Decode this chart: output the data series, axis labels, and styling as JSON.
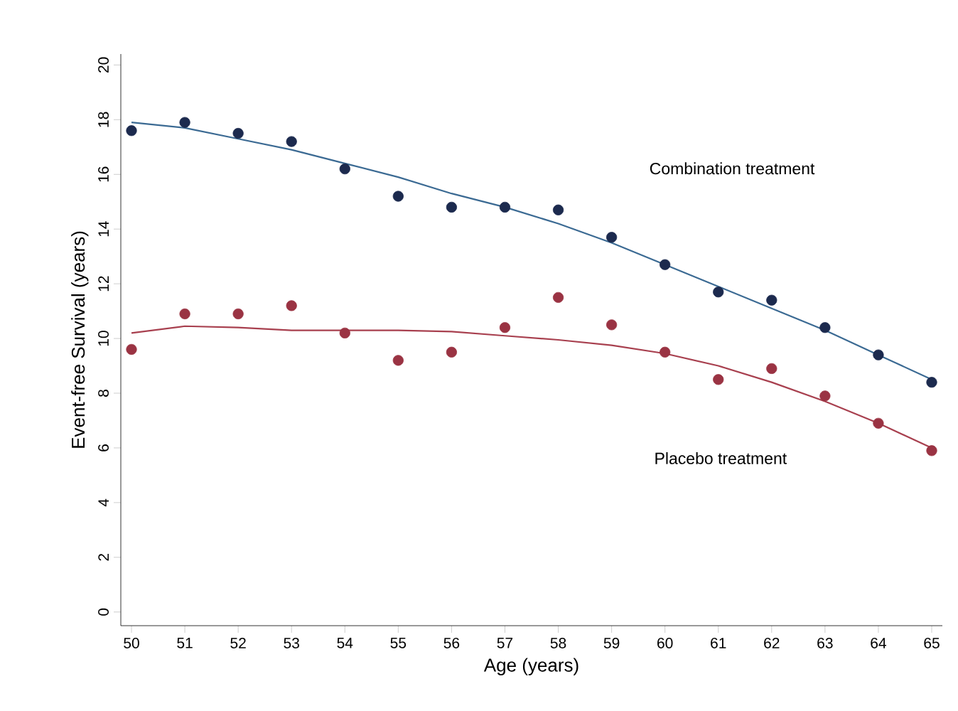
{
  "chart_data": {
    "type": "scatter",
    "xlabel": "Age (years)",
    "ylabel": "Event-free Survival (years)",
    "x": [
      50,
      51,
      52,
      53,
      54,
      55,
      56,
      57,
      58,
      59,
      60,
      61,
      62,
      63,
      64,
      65
    ],
    "xlim": [
      49.8,
      65.2
    ],
    "xticks": [
      50,
      51,
      52,
      53,
      54,
      55,
      56,
      57,
      58,
      59,
      60,
      61,
      62,
      63,
      64,
      65
    ],
    "ylim": [
      -0.5,
      20.4
    ],
    "yticks": [
      0,
      2,
      4,
      6,
      8,
      10,
      12,
      14,
      16,
      18,
      20
    ],
    "series": [
      {
        "marker": "circle",
        "color": "#1c2a4e",
        "values": [
          17.6,
          17.9,
          17.5,
          17.2,
          16.2,
          15.2,
          14.8,
          14.8,
          14.7,
          13.7,
          12.7,
          11.7,
          11.4,
          10.4,
          9.4,
          8.4
        ]
      },
      {
        "type": "line",
        "marker": "none",
        "color": "#3b6a93",
        "values": [
          17.9,
          17.7,
          17.3,
          16.9,
          16.4,
          15.9,
          15.3,
          14.8,
          14.2,
          13.5,
          12.7,
          11.9,
          11.1,
          10.3,
          9.4,
          8.5
        ]
      },
      {
        "marker": "circle",
        "color": "#9a3343",
        "values": [
          9.6,
          10.9,
          10.9,
          11.2,
          10.2,
          9.2,
          9.5,
          10.4,
          11.5,
          10.5,
          9.5,
          8.5,
          8.9,
          7.9,
          6.9,
          5.9
        ]
      },
      {
        "type": "line",
        "marker": "none",
        "color": "#a8404f",
        "values": [
          10.2,
          10.45,
          10.4,
          10.3,
          10.3,
          10.3,
          10.25,
          10.1,
          9.95,
          9.75,
          9.45,
          9.0,
          8.4,
          7.7,
          6.9,
          6.0
        ]
      }
    ],
    "annotations": [
      "Combination treatment",
      "Placebo treatment"
    ]
  }
}
